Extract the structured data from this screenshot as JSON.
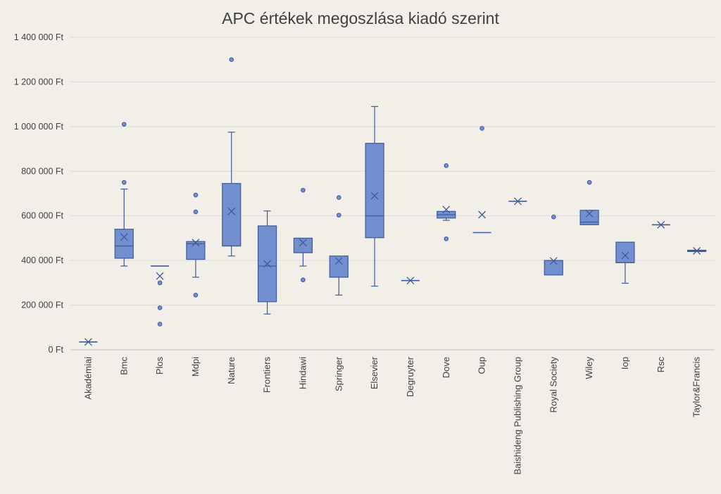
{
  "chart_data": {
    "type": "box",
    "title": "APC értékek megoszlása kiadó szerint",
    "xlabel": "",
    "ylabel": "",
    "ylim": [
      0,
      1400000
    ],
    "y_tick_values": [
      0,
      200000,
      400000,
      600000,
      800000,
      1000000,
      1200000,
      1400000
    ],
    "y_tick_labels": [
      "0 Ft",
      "200 000 Ft",
      "400 000 Ft",
      "600 000 Ft",
      "800 000 Ft",
      "1 000 000 Ft",
      "1 200 000 Ft",
      "1 400 000 Ft"
    ],
    "grid": true,
    "legend": "none",
    "colors": {
      "box_fill": "#7290cf",
      "box_stroke": "#3f5a9a",
      "grid": "#d9d9d9",
      "axis": "#bfbfbf"
    },
    "categories": [
      "Akadémiai",
      "Bmc",
      "Plos",
      "Mdpi",
      "Nature",
      "Frontiers",
      "Hindawi",
      "Springer",
      "Elsevier",
      "Degruyter",
      "Dove",
      "Oup",
      "Baishideng Publishing Group",
      "Royal Society",
      "Wiley",
      "Iop",
      "Rsc",
      "Taylor&Francis"
    ],
    "boxes": [
      {
        "min": 35000,
        "q1": 35000,
        "median": 35000,
        "q3": 35000,
        "max": 35000,
        "mean": 35000,
        "outliers": []
      },
      {
        "min": 375000,
        "q1": 410000,
        "median": 465000,
        "q3": 540000,
        "max": 720000,
        "mean": 505000,
        "outliers": [
          750000,
          1010000
        ]
      },
      {
        "min": 375000,
        "q1": 375000,
        "median": 375000,
        "q3": 375000,
        "max": 375000,
        "mean": 330000,
        "outliers": [
          115000,
          188000,
          300000
        ]
      },
      {
        "min": 325000,
        "q1": 405000,
        "median": 475000,
        "q3": 485000,
        "max": 485000,
        "mean": 480000,
        "outliers": [
          245000,
          618000,
          693000
        ]
      },
      {
        "min": 420000,
        "q1": 465000,
        "median": 465000,
        "q3": 745000,
        "max": 975000,
        "mean": 620000,
        "outliers": [
          1300000
        ]
      },
      {
        "min": 160000,
        "q1": 215000,
        "median": 375000,
        "q3": 555000,
        "max": 622000,
        "mean": 385000,
        "outliers": []
      },
      {
        "min": 375000,
        "q1": 435000,
        "median": 435000,
        "q3": 500000,
        "max": 500000,
        "mean": 480000,
        "outliers": [
          313000,
          715000
        ]
      },
      {
        "min": 245000,
        "q1": 325000,
        "median": 325000,
        "q3": 420000,
        "max": 420000,
        "mean": 398000,
        "outliers": [
          603000,
          682000
        ]
      },
      {
        "min": 285000,
        "q1": 502000,
        "median": 600000,
        "q3": 925000,
        "max": 1090000,
        "mean": 690000,
        "outliers": []
      },
      {
        "min": 310000,
        "q1": 310000,
        "median": 310000,
        "q3": 310000,
        "max": 310000,
        "mean": 310000,
        "outliers": []
      },
      {
        "min": 580000,
        "q1": 590000,
        "median": 605000,
        "q3": 620000,
        "max": 620000,
        "mean": 628000,
        "outliers": [
          497000,
          825000
        ]
      },
      {
        "min": 525000,
        "q1": 525000,
        "median": 525000,
        "q3": 525000,
        "max": 525000,
        "mean": 605000,
        "outliers": [
          992000
        ]
      },
      {
        "min": 665000,
        "q1": 665000,
        "median": 665000,
        "q3": 665000,
        "max": 665000,
        "mean": 665000,
        "outliers": []
      },
      {
        "min": 335000,
        "q1": 335000,
        "median": 400000,
        "q3": 400000,
        "max": 400000,
        "mean": 398000,
        "outliers": [
          595000
        ]
      },
      {
        "min": 560000,
        "q1": 560000,
        "median": 572000,
        "q3": 625000,
        "max": 625000,
        "mean": 610000,
        "outliers": [
          750000
        ]
      },
      {
        "min": 298000,
        "q1": 390000,
        "median": 390000,
        "q3": 482000,
        "max": 482000,
        "mean": 422000,
        "outliers": []
      },
      {
        "min": 560000,
        "q1": 560000,
        "median": 560000,
        "q3": 560000,
        "max": 560000,
        "mean": 560000,
        "outliers": []
      },
      {
        "min": 440000,
        "q1": 440000,
        "median": 443000,
        "q3": 446000,
        "max": 446000,
        "mean": 443000,
        "outliers": []
      }
    ]
  }
}
